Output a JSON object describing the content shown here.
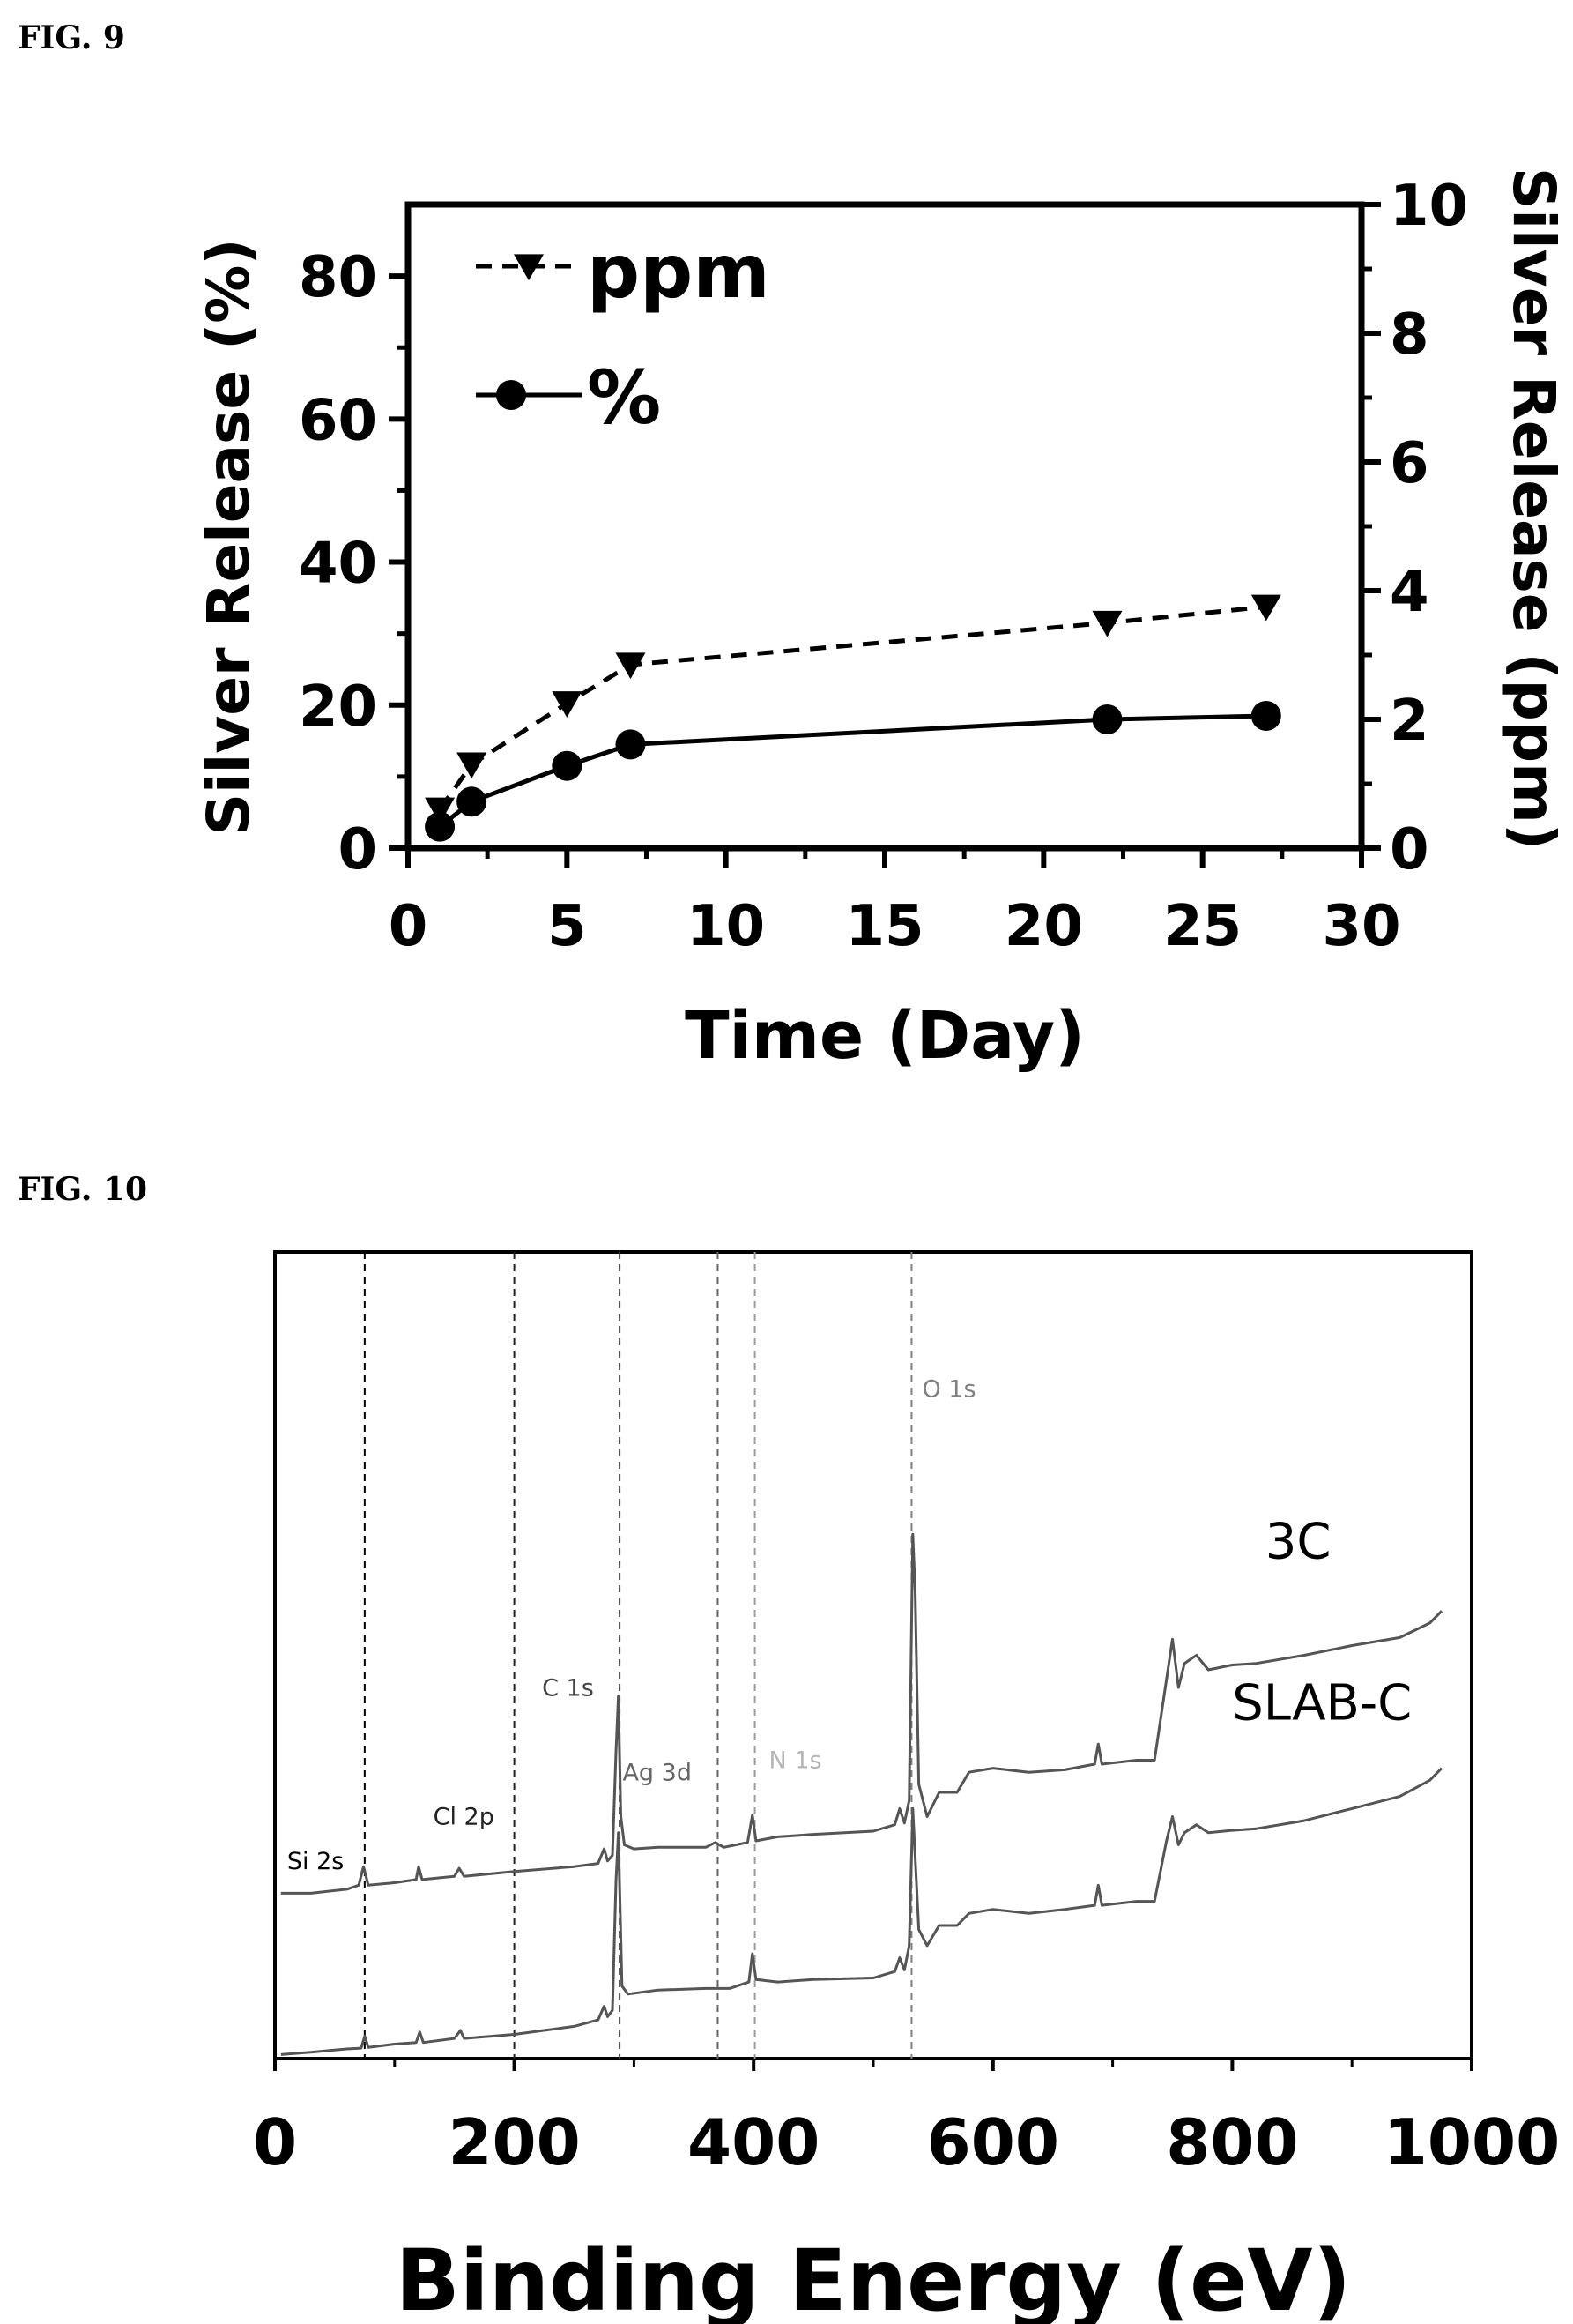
{
  "figures": {
    "fig9_label": "FIG. 9",
    "fig10_label": "FIG. 10"
  },
  "chart_data": [
    {
      "type": "line",
      "xlabel": "Time (Day)",
      "ylabel": "Silver Release (%)",
      "y2label": "Silver Release (ppm)",
      "xlim": [
        0,
        30
      ],
      "ylim": [
        0,
        90
      ],
      "y2lim": [
        0,
        10
      ],
      "xticks": [
        0,
        5,
        10,
        15,
        20,
        25,
        30
      ],
      "yticks": [
        0,
        20,
        40,
        60,
        80
      ],
      "y2ticks": [
        0,
        2,
        4,
        6,
        8,
        10
      ],
      "legend_position": "top-left",
      "series": [
        {
          "name": "ppm",
          "axis": "right",
          "marker": "triangle-down",
          "style": "dashed",
          "x": [
            1,
            2,
            5,
            7,
            22,
            27
          ],
          "y": [
            0.6,
            1.3,
            2.25,
            2.85,
            3.5,
            3.75
          ]
        },
        {
          "name": "%",
          "axis": "left",
          "marker": "circle",
          "style": "solid",
          "x": [
            1,
            2,
            5,
            7,
            22,
            27
          ],
          "y": [
            3,
            6.5,
            11.5,
            14.5,
            18,
            18.5
          ]
        }
      ]
    },
    {
      "type": "line",
      "xlabel": "Binding Energy (eV)",
      "ylabel": "",
      "xlim": [
        0,
        1000
      ],
      "xticks": [
        0,
        200,
        400,
        600,
        800,
        1000
      ],
      "grid": false,
      "series": [
        {
          "name": "3C",
          "points": [
            [
              5,
              0.205
            ],
            [
              30,
              0.205
            ],
            [
              60,
              0.21
            ],
            [
              70,
              0.215
            ],
            [
              74,
              0.238
            ],
            [
              78,
              0.215
            ],
            [
              100,
              0.218
            ],
            [
              118,
              0.222
            ],
            [
              120,
              0.238
            ],
            [
              123,
              0.222
            ],
            [
              150,
              0.226
            ],
            [
              154,
              0.236
            ],
            [
              158,
              0.226
            ],
            [
              200,
              0.232
            ],
            [
              250,
              0.238
            ],
            [
              270,
              0.242
            ],
            [
              275,
              0.26
            ],
            [
              278,
              0.245
            ],
            [
              282,
              0.252
            ],
            [
              285,
              0.38
            ],
            [
              287,
              0.45
            ],
            [
              289,
              0.3
            ],
            [
              292,
              0.265
            ],
            [
              300,
              0.26
            ],
            [
              320,
              0.262
            ],
            [
              360,
              0.262
            ],
            [
              368,
              0.268
            ],
            [
              375,
              0.262
            ],
            [
              395,
              0.268
            ],
            [
              399,
              0.302
            ],
            [
              402,
              0.27
            ],
            [
              420,
              0.275
            ],
            [
              450,
              0.278
            ],
            [
              500,
              0.282
            ],
            [
              518,
              0.29
            ],
            [
              522,
              0.31
            ],
            [
              526,
              0.292
            ],
            [
              530,
              0.32
            ],
            [
              533,
              0.65
            ],
            [
              535,
              0.58
            ],
            [
              538,
              0.34
            ],
            [
              545,
              0.3
            ],
            [
              555,
              0.33
            ],
            [
              570,
              0.33
            ],
            [
              580,
              0.355
            ],
            [
              600,
              0.36
            ],
            [
              630,
              0.355
            ],
            [
              660,
              0.358
            ],
            [
              685,
              0.365
            ],
            [
              688,
              0.39
            ],
            [
              691,
              0.365
            ],
            [
              720,
              0.37
            ],
            [
              735,
              0.37
            ],
            [
              745,
              0.47
            ],
            [
              750,
              0.52
            ],
            [
              755,
              0.46
            ],
            [
              760,
              0.49
            ],
            [
              770,
              0.5
            ],
            [
              780,
              0.482
            ],
            [
              800,
              0.488
            ],
            [
              820,
              0.49
            ],
            [
              860,
              0.5
            ],
            [
              900,
              0.512
            ],
            [
              940,
              0.522
            ],
            [
              965,
              0.54
            ],
            [
              975,
              0.555
            ]
          ]
        },
        {
          "name": "SLAB-C",
          "points": [
            [
              5,
              0.005
            ],
            [
              30,
              0.008
            ],
            [
              60,
              0.012
            ],
            [
              72,
              0.013
            ],
            [
              75,
              0.028
            ],
            [
              78,
              0.014
            ],
            [
              100,
              0.018
            ],
            [
              118,
              0.02
            ],
            [
              121,
              0.033
            ],
            [
              124,
              0.02
            ],
            [
              150,
              0.025
            ],
            [
              155,
              0.035
            ],
            [
              158,
              0.025
            ],
            [
              200,
              0.03
            ],
            [
              250,
              0.04
            ],
            [
              270,
              0.048
            ],
            [
              275,
              0.065
            ],
            [
              278,
              0.052
            ],
            [
              282,
              0.06
            ],
            [
              285,
              0.22
            ],
            [
              287,
              0.28
            ],
            [
              290,
              0.09
            ],
            [
              295,
              0.08
            ],
            [
              320,
              0.085
            ],
            [
              360,
              0.087
            ],
            [
              380,
              0.087
            ],
            [
              396,
              0.095
            ],
            [
              399,
              0.13
            ],
            [
              402,
              0.098
            ],
            [
              420,
              0.095
            ],
            [
              450,
              0.098
            ],
            [
              500,
              0.1
            ],
            [
              518,
              0.108
            ],
            [
              522,
              0.125
            ],
            [
              526,
              0.11
            ],
            [
              530,
              0.14
            ],
            [
              533,
              0.31
            ],
            [
              535,
              0.25
            ],
            [
              538,
              0.16
            ],
            [
              545,
              0.14
            ],
            [
              555,
              0.165
            ],
            [
              570,
              0.165
            ],
            [
              580,
              0.18
            ],
            [
              600,
              0.185
            ],
            [
              630,
              0.18
            ],
            [
              660,
              0.185
            ],
            [
              685,
              0.19
            ],
            [
              688,
              0.215
            ],
            [
              691,
              0.19
            ],
            [
              720,
              0.195
            ],
            [
              735,
              0.195
            ],
            [
              745,
              0.27
            ],
            [
              750,
              0.3
            ],
            [
              755,
              0.265
            ],
            [
              760,
              0.28
            ],
            [
              770,
              0.29
            ],
            [
              780,
              0.28
            ],
            [
              800,
              0.283
            ],
            [
              820,
              0.285
            ],
            [
              860,
              0.295
            ],
            [
              900,
              0.31
            ],
            [
              940,
              0.325
            ],
            [
              965,
              0.345
            ],
            [
              975,
              0.36
            ]
          ]
        }
      ],
      "peak_labels": [
        {
          "text": "Si 2s",
          "energy": 75,
          "color": "#000000"
        },
        {
          "text": "Cl 2p",
          "energy": 200,
          "color": "#222222"
        },
        {
          "text": "C 1s",
          "energy": 288,
          "color": "#444444"
        },
        {
          "text": "Ag 3d",
          "energy": 370,
          "color": "#666666"
        },
        {
          "text": "N 1s",
          "energy": 401,
          "color": "#b5b5b5"
        },
        {
          "text": "O 1s",
          "energy": 532,
          "color": "#808080"
        }
      ],
      "curve_labels": [
        "3C",
        "SLAB-C"
      ]
    }
  ]
}
